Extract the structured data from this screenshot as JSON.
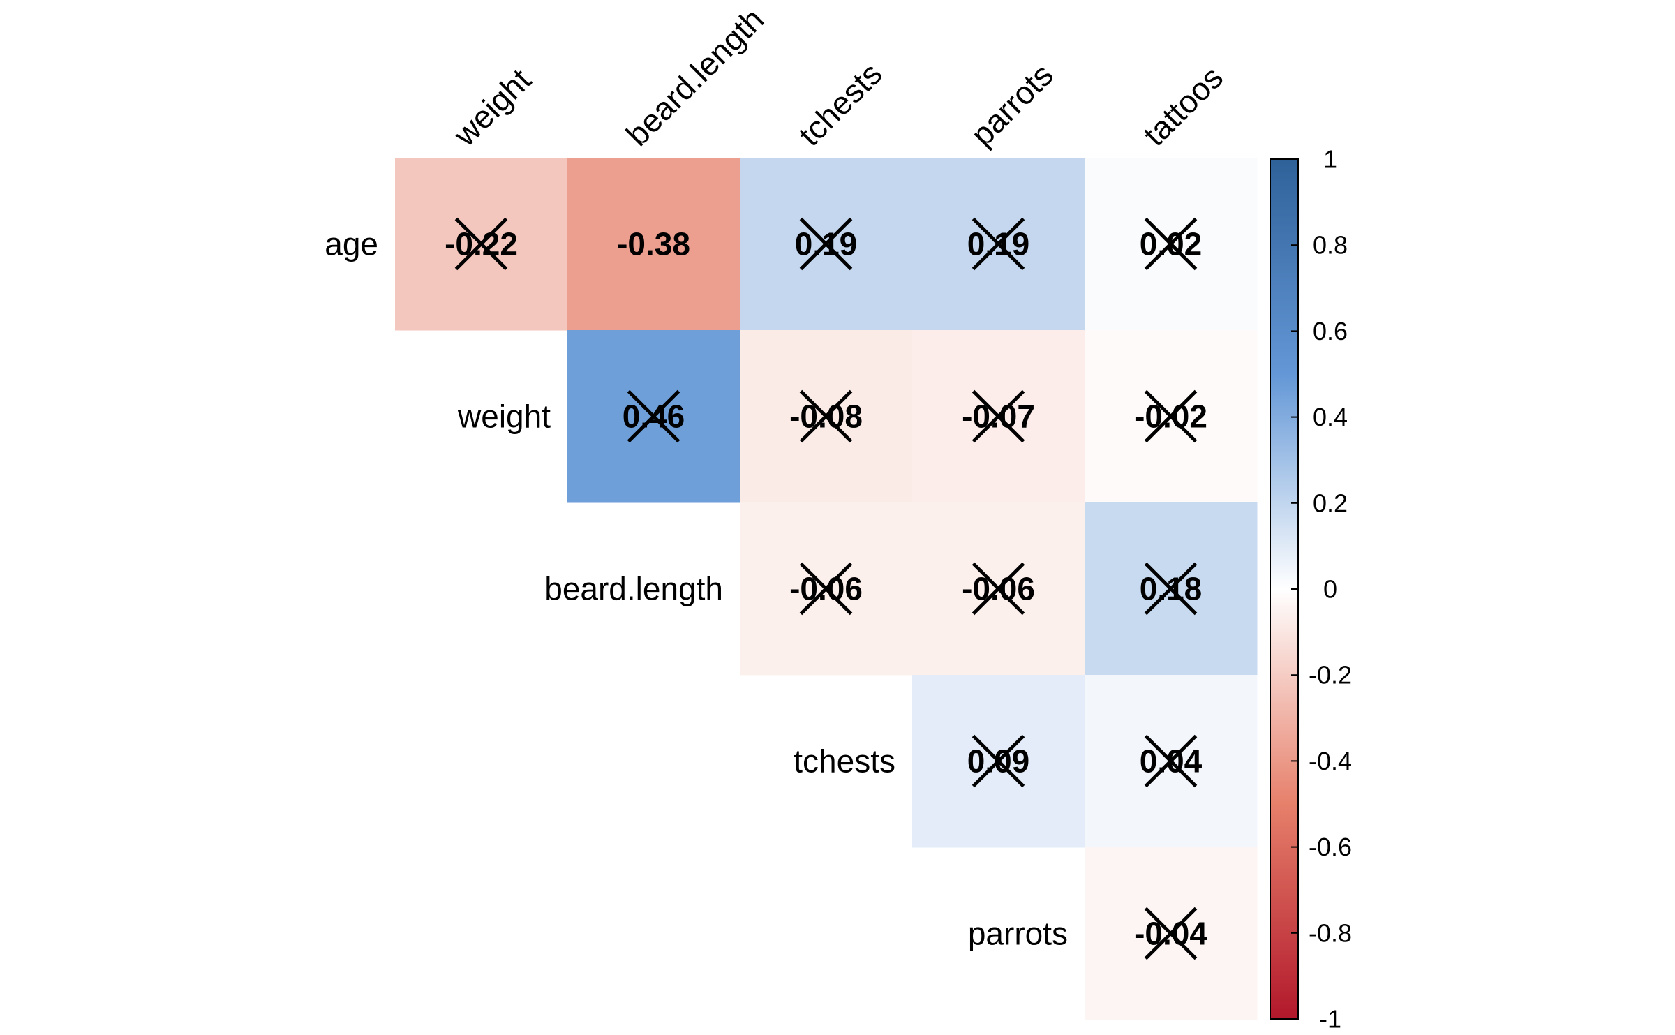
{
  "chart_data": {
    "type": "heatmap",
    "variant": "correlation-matrix-upper",
    "row_labels": [
      "age",
      "weight",
      "beard.length",
      "tchests",
      "parrots"
    ],
    "col_labels": [
      "weight",
      "beard.length",
      "tchests",
      "parrots",
      "tattoos"
    ],
    "values": [
      [
        -0.22,
        -0.38,
        0.19,
        0.19,
        0.02
      ],
      [
        null,
        0.46,
        -0.08,
        -0.07,
        -0.02
      ],
      [
        null,
        null,
        -0.06,
        -0.06,
        0.18
      ],
      [
        null,
        null,
        null,
        0.09,
        0.04
      ],
      [
        null,
        null,
        null,
        null,
        -0.04
      ]
    ],
    "value_labels": [
      [
        "-0.22",
        "-0.38",
        "0.19",
        "0.19",
        "0.02"
      ],
      [
        null,
        "0.46",
        "-0.08",
        "-0.07",
        "-0.02"
      ],
      [
        null,
        null,
        "-0.06",
        "-0.06",
        "0.18"
      ],
      [
        null,
        null,
        null,
        "0.09",
        "0.04"
      ],
      [
        null,
        null,
        null,
        null,
        "-0.04"
      ]
    ],
    "crossed_out": [
      [
        true,
        false,
        true,
        true,
        true
      ],
      [
        null,
        true,
        true,
        true,
        true
      ],
      [
        null,
        null,
        true,
        true,
        true
      ],
      [
        null,
        null,
        null,
        true,
        true
      ],
      [
        null,
        null,
        null,
        null,
        true
      ]
    ],
    "color_scale": {
      "range": [
        -1,
        1
      ],
      "stops": [
        {
          "value": -1,
          "color": "#b2182b"
        },
        {
          "value": -0.5,
          "color": "#e6806b"
        },
        {
          "value": 0,
          "color": "#ffffff"
        },
        {
          "value": 0.5,
          "color": "#6397d6"
        },
        {
          "value": 1,
          "color": "#2f6199"
        }
      ],
      "ticks": [
        "1",
        "0.8",
        "0.6",
        "0.4",
        "0.2",
        "0",
        "-0.2",
        "-0.4",
        "-0.6",
        "-0.8",
        "-1"
      ],
      "tick_values": [
        1,
        0.8,
        0.6,
        0.4,
        0.2,
        0,
        -0.2,
        -0.4,
        -0.6,
        -0.8,
        -1
      ]
    },
    "legend_position": "right"
  }
}
